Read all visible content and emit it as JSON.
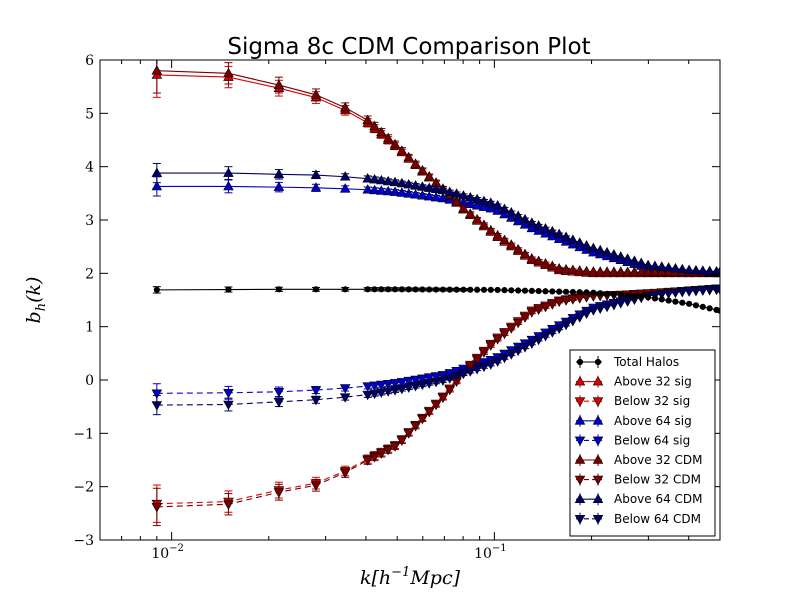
{
  "chart_data": {
    "type": "line",
    "title": "Sigma 8c CDM Comparison Plot",
    "xlabel": "k[h^{-1}Mpc]",
    "ylabel": "b_h(k)",
    "xscale": "log",
    "xlim": [
      0.006,
      0.5
    ],
    "ylim": [
      -3,
      6
    ],
    "x_tick_labels": [
      {
        "value": 0.01,
        "mantissa": "10",
        "exponent": "−2"
      },
      {
        "value": 0.1,
        "mantissa": "10",
        "exponent": "−1"
      }
    ],
    "y_ticks": [
      {
        "value": -3,
        "label": "−3"
      },
      {
        "value": -2,
        "label": "−2"
      },
      {
        "value": -1,
        "label": "−1"
      },
      {
        "value": 0,
        "label": "0"
      },
      {
        "value": 1,
        "label": "1"
      },
      {
        "value": 2,
        "label": "2"
      },
      {
        "value": 3,
        "label": "3"
      },
      {
        "value": 4,
        "label": "4"
      },
      {
        "value": 5,
        "label": "5"
      },
      {
        "value": 6,
        "label": "6"
      }
    ],
    "grid": false,
    "legend_position": "lower-right",
    "series": [
      {
        "name": "Total Halos",
        "color": "#000000",
        "marker": "circle",
        "dashed": false,
        "anchors": [
          [
            0.009,
            1.69
          ],
          [
            0.02,
            1.7
          ],
          [
            0.05,
            1.7
          ],
          [
            0.1,
            1.69
          ],
          [
            0.2,
            1.64
          ],
          [
            0.3,
            1.55
          ],
          [
            0.4,
            1.43
          ],
          [
            0.5,
            1.3
          ]
        ],
        "err_anchors": [
          [
            0.009,
            0.06
          ],
          [
            0.02,
            0.04
          ],
          [
            0.1,
            0.02
          ],
          [
            0.5,
            0.01
          ]
        ]
      },
      {
        "name": "Above 32 sig",
        "color": "#dd0000",
        "marker": "triangle-up",
        "dashed": false,
        "anchors": [
          [
            0.009,
            5.72
          ],
          [
            0.015,
            5.68
          ],
          [
            0.02,
            5.52
          ],
          [
            0.03,
            5.25
          ],
          [
            0.04,
            4.85
          ],
          [
            0.05,
            4.35
          ],
          [
            0.06,
            3.9
          ],
          [
            0.07,
            3.55
          ],
          [
            0.08,
            3.2
          ],
          [
            0.1,
            2.72
          ],
          [
            0.13,
            2.25
          ],
          [
            0.16,
            2.05
          ],
          [
            0.2,
            2.0
          ],
          [
            0.3,
            2.0
          ],
          [
            0.5,
            2.0
          ]
        ],
        "err_anchors": [
          [
            0.009,
            0.42
          ],
          [
            0.015,
            0.2
          ],
          [
            0.03,
            0.1
          ],
          [
            0.06,
            0.05
          ],
          [
            0.2,
            0.02
          ],
          [
            0.5,
            0.01
          ]
        ]
      },
      {
        "name": "Below 32 sig",
        "color": "#dd0000",
        "marker": "triangle-down",
        "dashed": true,
        "anchors": [
          [
            0.009,
            -2.32
          ],
          [
            0.015,
            -2.28
          ],
          [
            0.02,
            -2.1
          ],
          [
            0.03,
            -1.9
          ],
          [
            0.04,
            -1.5
          ],
          [
            0.05,
            -1.2
          ],
          [
            0.06,
            -0.7
          ],
          [
            0.07,
            -0.28
          ],
          [
            0.08,
            0.15
          ],
          [
            0.1,
            0.75
          ],
          [
            0.13,
            1.3
          ],
          [
            0.16,
            1.5
          ],
          [
            0.2,
            1.58
          ],
          [
            0.3,
            1.62
          ],
          [
            0.5,
            1.7
          ]
        ],
        "err_anchors": [
          [
            0.009,
            0.35
          ],
          [
            0.015,
            0.2
          ],
          [
            0.03,
            0.1
          ],
          [
            0.06,
            0.05
          ],
          [
            0.2,
            0.02
          ],
          [
            0.5,
            0.01
          ]
        ]
      },
      {
        "name": "Above 64 sig",
        "color": "#0000cc",
        "marker": "triangle-up",
        "dashed": false,
        "anchors": [
          [
            0.009,
            3.63
          ],
          [
            0.015,
            3.63
          ],
          [
            0.02,
            3.62
          ],
          [
            0.03,
            3.6
          ],
          [
            0.04,
            3.57
          ],
          [
            0.05,
            3.52
          ],
          [
            0.07,
            3.4
          ],
          [
            0.1,
            3.2
          ],
          [
            0.13,
            2.85
          ],
          [
            0.2,
            2.4
          ],
          [
            0.3,
            2.1
          ],
          [
            0.4,
            2.03
          ],
          [
            0.5,
            2.0
          ]
        ],
        "err_anchors": [
          [
            0.009,
            0.18
          ],
          [
            0.015,
            0.12
          ],
          [
            0.03,
            0.06
          ],
          [
            0.06,
            0.04
          ],
          [
            0.2,
            0.02
          ],
          [
            0.5,
            0.01
          ]
        ]
      },
      {
        "name": "Below 64 sig",
        "color": "#0000cc",
        "marker": "triangle-down",
        "dashed": true,
        "anchors": [
          [
            0.009,
            -0.25
          ],
          [
            0.015,
            -0.24
          ],
          [
            0.02,
            -0.23
          ],
          [
            0.03,
            -0.18
          ],
          [
            0.04,
            -0.12
          ],
          [
            0.05,
            -0.05
          ],
          [
            0.07,
            0.1
          ],
          [
            0.1,
            0.4
          ],
          [
            0.13,
            0.75
          ],
          [
            0.2,
            1.35
          ],
          [
            0.3,
            1.6
          ],
          [
            0.4,
            1.68
          ],
          [
            0.5,
            1.72
          ]
        ],
        "err_anchors": [
          [
            0.009,
            0.18
          ],
          [
            0.015,
            0.12
          ],
          [
            0.03,
            0.06
          ],
          [
            0.06,
            0.04
          ],
          [
            0.2,
            0.02
          ],
          [
            0.5,
            0.01
          ]
        ]
      },
      {
        "name": "Above 32 CDM",
        "color": "#7a0000",
        "marker": "triangle-up",
        "dashed": false,
        "anchors": [
          [
            0.009,
            5.8
          ],
          [
            0.015,
            5.75
          ],
          [
            0.02,
            5.58
          ],
          [
            0.03,
            5.3
          ],
          [
            0.04,
            4.9
          ],
          [
            0.05,
            4.38
          ],
          [
            0.06,
            3.92
          ],
          [
            0.07,
            3.56
          ],
          [
            0.08,
            3.22
          ],
          [
            0.1,
            2.75
          ],
          [
            0.13,
            2.28
          ],
          [
            0.16,
            2.08
          ],
          [
            0.2,
            2.03
          ],
          [
            0.3,
            2.02
          ],
          [
            0.5,
            2.02
          ]
        ],
        "err_anchors": [
          [
            0.009,
            0.42
          ],
          [
            0.015,
            0.2
          ],
          [
            0.03,
            0.1
          ],
          [
            0.06,
            0.05
          ],
          [
            0.2,
            0.02
          ],
          [
            0.5,
            0.01
          ]
        ]
      },
      {
        "name": "Below 32 CDM",
        "color": "#7a0000",
        "marker": "triangle-down",
        "dashed": true,
        "anchors": [
          [
            0.009,
            -2.38
          ],
          [
            0.015,
            -2.33
          ],
          [
            0.02,
            -2.14
          ],
          [
            0.03,
            -1.94
          ],
          [
            0.04,
            -1.52
          ],
          [
            0.05,
            -1.22
          ],
          [
            0.06,
            -0.72
          ],
          [
            0.07,
            -0.3
          ],
          [
            0.08,
            0.12
          ],
          [
            0.1,
            0.72
          ],
          [
            0.13,
            1.27
          ],
          [
            0.16,
            1.48
          ],
          [
            0.2,
            1.57
          ],
          [
            0.3,
            1.63
          ],
          [
            0.5,
            1.72
          ]
        ],
        "err_anchors": [
          [
            0.009,
            0.35
          ],
          [
            0.015,
            0.2
          ],
          [
            0.03,
            0.1
          ],
          [
            0.06,
            0.05
          ],
          [
            0.2,
            0.02
          ],
          [
            0.5,
            0.01
          ]
        ]
      },
      {
        "name": "Above 64 CDM",
        "color": "#000066",
        "marker": "triangle-up",
        "dashed": false,
        "anchors": [
          [
            0.009,
            3.88
          ],
          [
            0.015,
            3.88
          ],
          [
            0.02,
            3.86
          ],
          [
            0.03,
            3.84
          ],
          [
            0.04,
            3.78
          ],
          [
            0.05,
            3.7
          ],
          [
            0.07,
            3.55
          ],
          [
            0.1,
            3.3
          ],
          [
            0.13,
            2.95
          ],
          [
            0.2,
            2.48
          ],
          [
            0.3,
            2.15
          ],
          [
            0.4,
            2.06
          ],
          [
            0.5,
            2.03
          ]
        ],
        "err_anchors": [
          [
            0.009,
            0.18
          ],
          [
            0.015,
            0.12
          ],
          [
            0.03,
            0.06
          ],
          [
            0.06,
            0.04
          ],
          [
            0.2,
            0.02
          ],
          [
            0.5,
            0.01
          ]
        ]
      },
      {
        "name": "Below 64 CDM",
        "color": "#000066",
        "marker": "triangle-down",
        "dashed": true,
        "anchors": [
          [
            0.009,
            -0.47
          ],
          [
            0.015,
            -0.46
          ],
          [
            0.02,
            -0.42
          ],
          [
            0.03,
            -0.36
          ],
          [
            0.04,
            -0.28
          ],
          [
            0.05,
            -0.18
          ],
          [
            0.07,
            0.0
          ],
          [
            0.1,
            0.32
          ],
          [
            0.13,
            0.68
          ],
          [
            0.2,
            1.3
          ],
          [
            0.3,
            1.58
          ],
          [
            0.4,
            1.67
          ],
          [
            0.5,
            1.72
          ]
        ],
        "err_anchors": [
          [
            0.009,
            0.18
          ],
          [
            0.015,
            0.12
          ],
          [
            0.03,
            0.06
          ],
          [
            0.06,
            0.04
          ],
          [
            0.2,
            0.02
          ],
          [
            0.5,
            0.01
          ]
        ]
      }
    ]
  }
}
